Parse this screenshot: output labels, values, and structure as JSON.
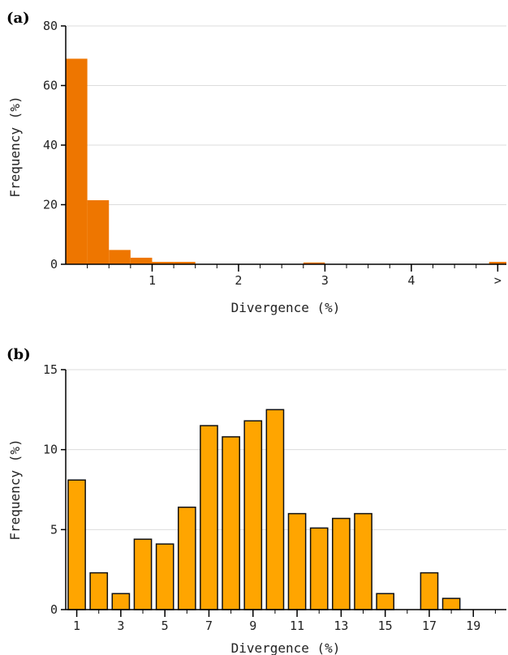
{
  "chart_data": [
    {
      "panel": "(a)",
      "type": "bar",
      "xlabel": "Divergence (%)",
      "ylabel": "Frequency (%)",
      "xlim": [
        0.0,
        5.1
      ],
      "ylim": [
        0,
        80
      ],
      "yticks": [
        "0",
        "20",
        "40",
        "60",
        "80"
      ],
      "xtick_positions": [
        1,
        2,
        3,
        4,
        5
      ],
      "xticks": [
        "1",
        "2",
        "3",
        "4",
        ">"
      ],
      "minor_step": 0.25,
      "grid": true,
      "bar_color": "#ee7600",
      "bins": [
        {
          "x0": 0.0,
          "x1": 0.25,
          "value": 69
        },
        {
          "x0": 0.25,
          "x1": 0.5,
          "value": 21.5
        },
        {
          "x0": 0.5,
          "x1": 0.75,
          "value": 4.8
        },
        {
          "x0": 0.75,
          "x1": 1.0,
          "value": 2.2
        },
        {
          "x0": 1.0,
          "x1": 1.25,
          "value": 0.8
        },
        {
          "x0": 1.25,
          "x1": 1.5,
          "value": 0.8
        },
        {
          "x0": 2.75,
          "x1": 3.0,
          "value": 0.6
        },
        {
          "x0": 4.9,
          "x1": 5.1,
          "value": 0.8
        }
      ]
    },
    {
      "panel": "(b)",
      "type": "bar",
      "xlabel": "Divergence (%)",
      "ylabel": "Frequency (%)",
      "xlim": [
        0.5,
        20.5
      ],
      "ylim": [
        0,
        15
      ],
      "yticks": [
        "0",
        "5",
        "10",
        "15"
      ],
      "xtick_positions": [
        1,
        3,
        5,
        7,
        9,
        11,
        13,
        15,
        17,
        19
      ],
      "xticks": [
        "1",
        "3",
        "5",
        "7",
        "9",
        "11",
        "13",
        "15",
        "17",
        "19"
      ],
      "grid": true,
      "bar_color": "#ffa500",
      "categories": [
        1,
        2,
        3,
        4,
        5,
        6,
        7,
        8,
        9,
        10,
        11,
        12,
        13,
        14,
        15,
        16,
        17,
        18
      ],
      "values": [
        8.1,
        2.3,
        1.0,
        4.4,
        4.1,
        6.4,
        11.5,
        10.8,
        11.8,
        12.5,
        6.0,
        5.1,
        5.7,
        6.0,
        1.0,
        0,
        2.3,
        0.7
      ]
    }
  ]
}
